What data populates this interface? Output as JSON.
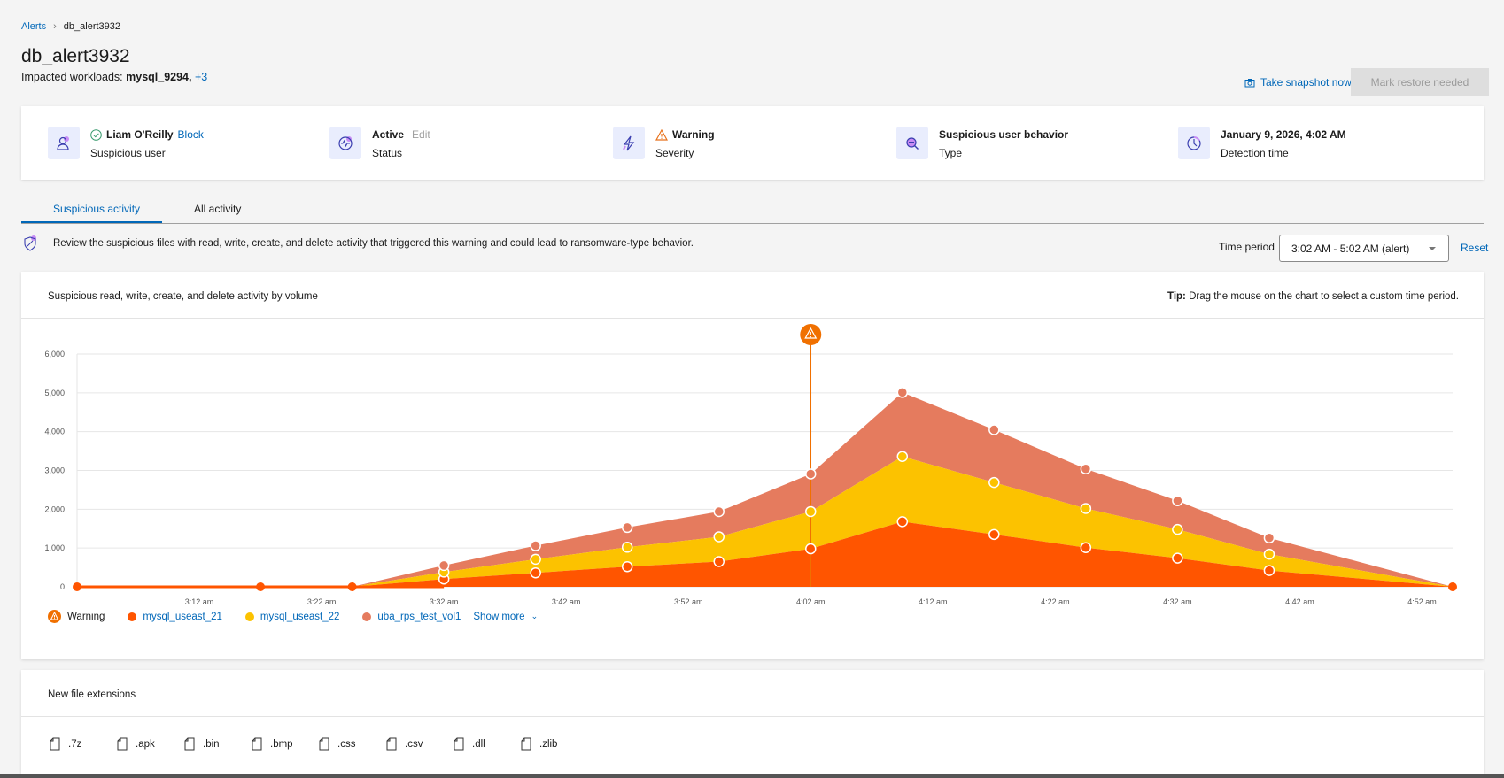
{
  "breadcrumb": {
    "parent": "Alerts",
    "current": "db_alert3932"
  },
  "header": {
    "title": "db_alert3932",
    "impacted_label": "Impacted workloads:",
    "impacted_value": "mysql_9294,",
    "impacted_more": "+3",
    "snapshot_label": "Take snapshot now",
    "mark_restore_label": "Mark restore needed"
  },
  "summary": [
    {
      "icon": "user-icon",
      "value": "Liam O'Reilly",
      "action": "Block",
      "label": "Suspicious user",
      "status_icon": "check-circle-icon"
    },
    {
      "icon": "activity-icon",
      "value": "Active",
      "action": "Edit",
      "label": "Status"
    },
    {
      "icon": "lightning-icon",
      "value": "Warning",
      "label": "Severity",
      "status_icon": "warning-icon"
    },
    {
      "icon": "search-user-icon",
      "value": "Suspicious user behavior",
      "label": "Type"
    },
    {
      "icon": "clock-icon",
      "value": "January 9, 2026, 4:02 AM",
      "label": "Detection time"
    }
  ],
  "tabs": [
    {
      "label": "Suspicious activity",
      "active": true
    },
    {
      "label": "All activity",
      "active": false
    }
  ],
  "info_text": "Review the suspicious files with read, write, create, and delete activity that triggered this warning and could lead to ransomware-type behavior.",
  "time_period": {
    "label": "Time period",
    "value": "3:02 AM - 5:02 AM (alert)",
    "reset": "Reset"
  },
  "chart_card": {
    "title": "Suspicious read, write, create, and delete activity by volume",
    "tip_bold": "Tip:",
    "tip": " Drag the mouse on the chart to select a custom time period."
  },
  "chart_data": {
    "type": "area",
    "stacked": true,
    "x": [
      "3:02",
      "3:17",
      "3:24:30",
      "3:32",
      "3:39:30",
      "3:47",
      "3:54:30",
      "4:02",
      "4:09:30",
      "4:17",
      "4:24:30",
      "4:32",
      "4:39:30",
      "4:54:30"
    ],
    "xlim": [
      "3:02",
      "4:54:30"
    ],
    "x_ticks": [
      "3:12 am",
      "3:22 am",
      "3:32 am",
      "3:42 am",
      "3:52 am",
      "4:02 am",
      "4:12 am",
      "4:22 am",
      "4:32 am",
      "4:42 am",
      "4:52 am"
    ],
    "x_tick_minutes": [
      "3:12",
      "3:22",
      "3:32",
      "3:42",
      "3:52",
      "4:02",
      "4:12",
      "4:22",
      "4:32",
      "4:42",
      "4:52"
    ],
    "ylim": [
      0,
      6000
    ],
    "y_ticks": [
      "0",
      "1,000",
      "2,000",
      "3,000",
      "4,000",
      "5,000",
      "6,000"
    ],
    "y_tick_values": [
      0,
      1000,
      2000,
      3000,
      4000,
      5000,
      6000
    ],
    "grid": true,
    "legend_placement": "bottom-left",
    "alert_marker": {
      "name": "Warning",
      "x": "4:02",
      "color": "#f07000"
    },
    "series": [
      {
        "name": "mysql_useast_21",
        "color": "#ff5500",
        "values": [
          0,
          0,
          0,
          200,
          360,
          520,
          650,
          980,
          1680,
          1350,
          1010,
          740,
          420,
          0
        ]
      },
      {
        "name": "mysql_useast_22",
        "color": "#fcc200",
        "values": [
          0,
          0,
          0,
          180,
          350,
          500,
          640,
          960,
          1680,
          1340,
          1010,
          740,
          420,
          0
        ]
      },
      {
        "name": "uba_rps_test_vol1",
        "color": "#e57b5e",
        "values": [
          0,
          0,
          0,
          170,
          350,
          510,
          650,
          970,
          1650,
          1360,
          1020,
          740,
          420,
          0
        ]
      }
    ],
    "show_more": "Show more"
  },
  "extensions": {
    "title": "New file extensions",
    "items": [
      ".7z",
      ".apk",
      ".bin",
      ".bmp",
      ".css",
      ".csv",
      ".dll",
      ".zlib"
    ]
  }
}
